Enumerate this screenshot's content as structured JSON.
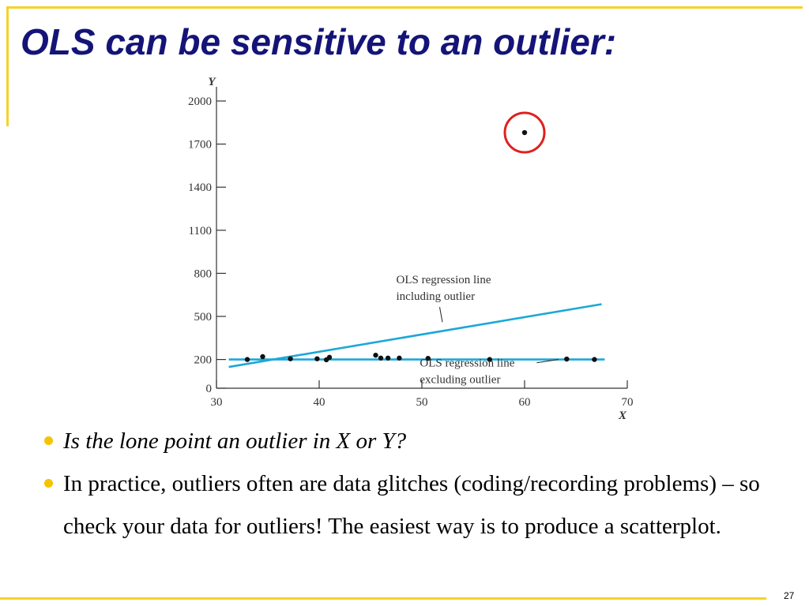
{
  "slide": {
    "title": "OLS can be sensitive to an outlier:",
    "bullets": [
      "Is the lone point an outlier in X or Y?",
      "In practice, outliers often are data glitches (coding/recording problems) – so check your data for outliers!  The easiest way is to produce a scatterplot."
    ],
    "page_number": "27",
    "colors": {
      "title": "#141478",
      "accent": "#F5D22A",
      "bullet": "#F5C400",
      "regression_line": "#1BA8D8",
      "highlight_circle": "#E02020"
    }
  },
  "chart_data": {
    "type": "scatter",
    "xlabel": "X",
    "ylabel": "Y",
    "xlim": [
      30,
      70
    ],
    "ylim": [
      0,
      2000
    ],
    "x_ticks": [
      30,
      40,
      50,
      60,
      70
    ],
    "y_ticks": [
      0,
      200,
      500,
      800,
      1100,
      1400,
      1700,
      2000
    ],
    "grid": false,
    "points": [
      {
        "x": 33,
        "y": 200
      },
      {
        "x": 34.5,
        "y": 220
      },
      {
        "x": 37.2,
        "y": 205
      },
      {
        "x": 39.8,
        "y": 205
      },
      {
        "x": 40.7,
        "y": 198
      },
      {
        "x": 41,
        "y": 215
      },
      {
        "x": 45.5,
        "y": 230
      },
      {
        "x": 46,
        "y": 210
      },
      {
        "x": 46.7,
        "y": 210
      },
      {
        "x": 47.8,
        "y": 210
      },
      {
        "x": 50.6,
        "y": 208
      },
      {
        "x": 56.6,
        "y": 200
      },
      {
        "x": 60,
        "y": 1780
      },
      {
        "x": 64.1,
        "y": 203
      },
      {
        "x": 66.8,
        "y": 200
      }
    ],
    "outlier_index": 12,
    "lines": [
      {
        "x": [
          31.2,
          67.8
        ],
        "y": [
          200,
          200
        ]
      },
      {
        "x": [
          31.2,
          67.5
        ],
        "y": [
          148,
          585
        ]
      }
    ],
    "annotations": [
      {
        "text": [
          "OLS regression line",
          "including outlier"
        ],
        "x": 47.5,
        "y": 730,
        "arrow_to": {
          "x": 52,
          "y": 460
        }
      },
      {
        "text": [
          "OLS regression line",
          "excluding outlier"
        ],
        "x": 49.8,
        "y": 150,
        "arrow_to": {
          "x": 63.3,
          "y": 200
        }
      }
    ]
  }
}
